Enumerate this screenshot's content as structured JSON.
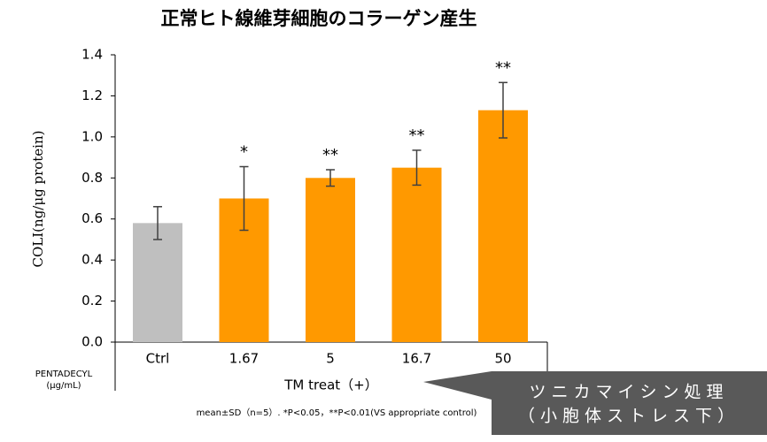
{
  "chart_data": {
    "type": "bar",
    "title": "正常ヒト線維芽細胞のコラーゲン産生",
    "y_label": "COLI(ng/μg protein)",
    "x_label": "TM treat（+）",
    "x_row_label": [
      "PENTADECYL",
      "(μg/mL)"
    ],
    "categories": [
      "Ctrl",
      "1.67",
      "5",
      "16.7",
      "50"
    ],
    "values": [
      0.58,
      0.7,
      0.8,
      0.85,
      1.13
    ],
    "errors": [
      0.08,
      0.155,
      0.04,
      0.085,
      0.135
    ],
    "annotations": [
      null,
      "*",
      "**",
      "**",
      "**"
    ],
    "colors": [
      "#bfbfbf",
      "#ff9900",
      "#ff9900",
      "#ff9900",
      "#ff9900"
    ],
    "ylim": [
      0,
      1.4
    ],
    "yticks": [
      {
        "value": 0,
        "label": "0.0"
      },
      0.2,
      0.4,
      0.6,
      0.8,
      {
        "value": 1,
        "label": "1.0"
      },
      1.2,
      1.4
    ],
    "footnote": "mean±SD（n=5）. *P<0.05，**P<0.01(VS appropriate control)",
    "callout": [
      "ツニカマイシン処理",
      "（小胞体ストレス下）"
    ]
  }
}
